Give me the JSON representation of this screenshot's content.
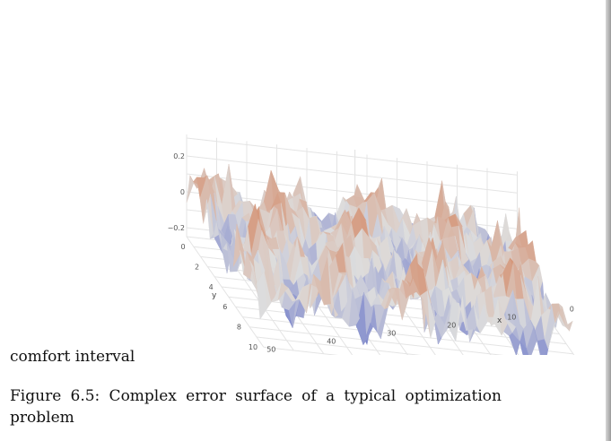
{
  "body_text": "comfort interval",
  "caption": "Figure 6.5: Complex error surface of a typical optimization problem",
  "chart_data": {
    "type": "surface",
    "title": "",
    "xlabel": "x",
    "ylabel": "y",
    "zlabel": "",
    "x_ticks": [
      "0",
      "10",
      "20",
      "30",
      "40",
      "50"
    ],
    "y_ticks": [
      "0",
      "2",
      "4",
      "6",
      "8",
      "10"
    ],
    "z_ticks": [
      "0.2",
      "0",
      "−0.2"
    ],
    "xlim": [
      0,
      55
    ],
    "ylim": [
      0,
      11
    ],
    "zlim": [
      -0.3,
      0.3
    ],
    "colorscale": {
      "low": "#3b4cc0",
      "mid": "#dddddd",
      "high": "#d0693a"
    },
    "grid": true
  }
}
